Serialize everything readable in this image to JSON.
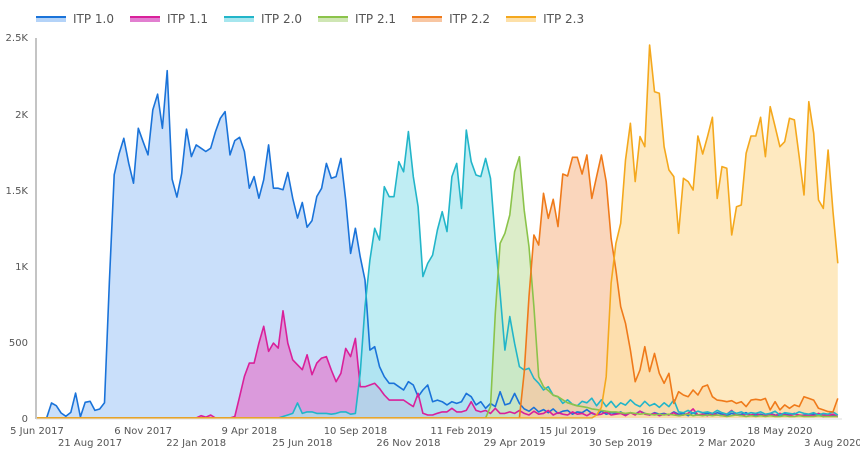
{
  "chart_data": {
    "type": "area",
    "title": "",
    "xlabel": "",
    "ylabel": "",
    "ylim": [
      0,
      2500
    ],
    "y_ticks": [
      0,
      500,
      1000,
      1500,
      2000,
      2500
    ],
    "y_tick_labels": [
      "0",
      "500",
      "1K",
      "1.5K",
      "2K",
      "2.5K"
    ],
    "grid": false,
    "legend": "top-left",
    "x_tick_labels": [
      "5 Jun 2017",
      "21 Aug 2017",
      "6 Nov 2017",
      "22 Jan 2018",
      "9 Apr 2018",
      "25 Jun 2018",
      "10 Sep 2018",
      "26 Nov 2018",
      "11 Feb 2019",
      "29 Apr 2019",
      "15 Jul 2019",
      "30 Sep 2019",
      "16 Dec 2019",
      "2 Mar 2020",
      "18 May 2020",
      "3 Aug 2020"
    ],
    "x": [
      "2017-06-05",
      "2017-06-12",
      "2017-06-19",
      "2017-06-26",
      "2017-07-03",
      "2017-07-10",
      "2017-07-17",
      "2017-07-24",
      "2017-07-31",
      "2017-08-07",
      "2017-08-14",
      "2017-08-21",
      "2017-08-28",
      "2017-09-04",
      "2017-09-11",
      "2017-09-18",
      "2017-09-25",
      "2017-10-02",
      "2017-10-09",
      "2017-10-16",
      "2017-10-23",
      "2017-10-30",
      "2017-11-06",
      "2017-11-13",
      "2017-11-20",
      "2017-11-27",
      "2017-12-04",
      "2017-12-11",
      "2017-12-18",
      "2017-12-25",
      "2018-01-01",
      "2018-01-08",
      "2018-01-15",
      "2018-01-22",
      "2018-01-29",
      "2018-02-05",
      "2018-02-12",
      "2018-02-19",
      "2018-02-26",
      "2018-03-05",
      "2018-03-12",
      "2018-03-19",
      "2018-03-26",
      "2018-04-02",
      "2018-04-09",
      "2018-04-16",
      "2018-04-23",
      "2018-04-30",
      "2018-05-07",
      "2018-05-14",
      "2018-05-21",
      "2018-05-28",
      "2018-06-04",
      "2018-06-11",
      "2018-06-18",
      "2018-06-25",
      "2018-07-02",
      "2018-07-09",
      "2018-07-16",
      "2018-07-23",
      "2018-07-30",
      "2018-08-06",
      "2018-08-13",
      "2018-08-20",
      "2018-08-27",
      "2018-09-03",
      "2018-09-10",
      "2018-09-17",
      "2018-09-24",
      "2018-10-01",
      "2018-10-08",
      "2018-10-15",
      "2018-10-22",
      "2018-10-29",
      "2018-11-05",
      "2018-11-12",
      "2018-11-19",
      "2018-11-26",
      "2018-12-03",
      "2018-12-10",
      "2018-12-17",
      "2018-12-24",
      "2018-12-31",
      "2019-01-07",
      "2019-01-14",
      "2019-01-21",
      "2019-01-28",
      "2019-02-04",
      "2019-02-11",
      "2019-02-18",
      "2019-02-25",
      "2019-03-04",
      "2019-03-11",
      "2019-03-18",
      "2019-03-25",
      "2019-04-01",
      "2019-04-08",
      "2019-04-15",
      "2019-04-22",
      "2019-04-29",
      "2019-05-06",
      "2019-05-13",
      "2019-05-20",
      "2019-05-27",
      "2019-06-03",
      "2019-06-10",
      "2019-06-17",
      "2019-06-24",
      "2019-07-01",
      "2019-07-08",
      "2019-07-15",
      "2019-07-22",
      "2019-07-29",
      "2019-08-05",
      "2019-08-12",
      "2019-08-19",
      "2019-08-26",
      "2019-09-02",
      "2019-09-09",
      "2019-09-16",
      "2019-09-23",
      "2019-09-30",
      "2019-10-07",
      "2019-10-14",
      "2019-10-21",
      "2019-10-28",
      "2019-11-04",
      "2019-11-11",
      "2019-11-18",
      "2019-11-25",
      "2019-12-02",
      "2019-12-09",
      "2019-12-16",
      "2019-12-23",
      "2019-12-30",
      "2020-01-06",
      "2020-01-13",
      "2020-01-20",
      "2020-01-27",
      "2020-02-03",
      "2020-02-10",
      "2020-02-17",
      "2020-02-24",
      "2020-03-02",
      "2020-03-09",
      "2020-03-16",
      "2020-03-23",
      "2020-03-30",
      "2020-04-06",
      "2020-04-13",
      "2020-04-20",
      "2020-04-27",
      "2020-05-04",
      "2020-05-11",
      "2020-05-18",
      "2020-05-25",
      "2020-06-01",
      "2020-06-08",
      "2020-06-15",
      "2020-06-22",
      "2020-06-29",
      "2020-07-06",
      "2020-07-13",
      "2020-07-20",
      "2020-07-27",
      "2020-08-03",
      "2020-08-10"
    ],
    "series": [
      {
        "name": "ITP 1.0",
        "color": "#1a73d9",
        "fill": "#b4d3f8",
        "values": [
          0,
          0,
          0,
          99,
          81,
          33,
          11,
          37,
          164,
          7,
          103,
          110,
          50,
          59,
          100,
          900,
          1600,
          1737,
          1840,
          1676,
          1545,
          1906,
          1818,
          1731,
          2027,
          2130,
          1906,
          2285,
          1571,
          1453,
          1610,
          1900,
          1720,
          1797,
          1775,
          1753,
          1775,
          1884,
          1972,
          2016,
          1731,
          1825,
          1847,
          1753,
          1512,
          1588,
          1446,
          1567,
          1797,
          1512,
          1512,
          1501,
          1615,
          1446,
          1315,
          1418,
          1255,
          1299,
          1457,
          1511,
          1675,
          1577,
          1588,
          1708,
          1434,
          1083,
          1248,
          1061,
          908,
          447,
          469,
          338,
          272,
          228,
          228,
          206,
          184,
          239,
          217,
          140,
          184,
          217,
          107,
          118,
          107,
          86,
          107,
          96,
          107,
          162,
          140,
          86,
          107,
          64,
          96,
          75,
          173,
          86,
          96,
          162,
          96,
          60,
          45,
          70,
          40,
          55,
          35,
          60,
          30,
          45,
          50,
          25,
          40,
          35,
          55,
          30,
          20,
          45,
          25,
          35,
          30,
          40,
          20,
          35,
          25,
          45,
          30,
          20,
          35,
          25,
          30,
          20,
          40,
          25,
          30,
          15,
          35,
          20,
          25,
          30,
          20,
          35,
          25,
          15,
          30,
          20,
          25,
          35,
          15,
          20,
          25,
          15,
          30,
          20,
          15,
          25,
          20,
          30,
          15,
          20,
          15,
          25,
          20,
          10,
          20,
          15,
          10
        ]
      },
      {
        "name": "ITP 1.1",
        "color": "#d9209a",
        "fill": "#e27fd0",
        "values": [
          0,
          0,
          0,
          0,
          0,
          0,
          0,
          0,
          0,
          0,
          0,
          0,
          0,
          0,
          0,
          0,
          0,
          0,
          0,
          0,
          0,
          0,
          0,
          0,
          0,
          0,
          0,
          0,
          0,
          0,
          0,
          0,
          0,
          0,
          15,
          5,
          20,
          0,
          0,
          0,
          0,
          10,
          140,
          274,
          361,
          361,
          493,
          603,
          438,
          493,
          460,
          705,
          493,
          383,
          350,
          318,
          416,
          285,
          361,
          394,
          404,
          316,
          239,
          294,
          458,
          404,
          524,
          206,
          206,
          217,
          228,
          195,
          151,
          118,
          118,
          118,
          118,
          96,
          75,
          162,
          31,
          20,
          20,
          31,
          40,
          40,
          64,
          40,
          40,
          50,
          107,
          50,
          40,
          50,
          30,
          64,
          30,
          30,
          40,
          30,
          50,
          30,
          20,
          45,
          25,
          30,
          50,
          20,
          35,
          25,
          20,
          40,
          25,
          30,
          15,
          35,
          20,
          25,
          40,
          20,
          25,
          30,
          15,
          35,
          20,
          45,
          25,
          20,
          30,
          15,
          25,
          20,
          35,
          15,
          20,
          30,
          60,
          20,
          25,
          15,
          30,
          20,
          15,
          25,
          50,
          20,
          15,
          25,
          20,
          30,
          15,
          20,
          25,
          15,
          30,
          20,
          15,
          25,
          20,
          15,
          20,
          15,
          30,
          20,
          15,
          25,
          10
        ]
      },
      {
        "name": "ITP 2.0",
        "color": "#22b5c9",
        "fill": "#a6e6ee",
        "values": [
          0,
          0,
          0,
          0,
          0,
          0,
          0,
          0,
          0,
          0,
          0,
          0,
          0,
          0,
          0,
          0,
          0,
          0,
          0,
          0,
          0,
          0,
          0,
          0,
          0,
          0,
          0,
          0,
          0,
          0,
          0,
          0,
          0,
          0,
          0,
          0,
          0,
          0,
          0,
          0,
          0,
          0,
          0,
          0,
          0,
          0,
          0,
          0,
          0,
          0,
          0,
          10,
          20,
          30,
          99,
          30,
          40,
          40,
          30,
          30,
          30,
          25,
          30,
          40,
          40,
          25,
          30,
          294,
          732,
          1039,
          1248,
          1171,
          1522,
          1456,
          1456,
          1686,
          1620,
          1884,
          1588,
          1390,
          930,
          1017,
          1072,
          1237,
          1357,
          1226,
          1588,
          1675,
          1379,
          1895,
          1686,
          1599,
          1588,
          1708,
          1577,
          1171,
          820,
          447,
          667,
          491,
          338,
          316,
          327,
          261,
          228,
          184,
          206,
          150,
          140,
          96,
          120,
          90,
          80,
          110,
          100,
          130,
          80,
          120,
          75,
          110,
          70,
          100,
          85,
          120,
          90,
          75,
          110,
          80,
          95,
          70,
          100,
          75,
          120,
          40,
          35,
          50,
          30,
          45,
          35,
          40,
          30,
          50,
          35,
          25,
          45,
          30,
          40,
          25,
          35,
          30,
          40,
          25,
          30,
          45,
          20,
          35,
          30,
          25,
          40,
          30,
          25,
          35,
          20,
          30,
          25,
          40,
          20
        ]
      },
      {
        "name": "ITP 2.1",
        "color": "#8bc34a",
        "fill": "#cfe6b4",
        "values": [
          0,
          0,
          0,
          0,
          0,
          0,
          0,
          0,
          0,
          0,
          0,
          0,
          0,
          0,
          0,
          0,
          0,
          0,
          0,
          0,
          0,
          0,
          0,
          0,
          0,
          0,
          0,
          0,
          0,
          0,
          0,
          0,
          0,
          0,
          0,
          0,
          0,
          0,
          0,
          0,
          0,
          0,
          0,
          0,
          0,
          0,
          0,
          0,
          0,
          0,
          0,
          0,
          0,
          0,
          0,
          0,
          0,
          0,
          0,
          0,
          0,
          0,
          0,
          0,
          0,
          0,
          0,
          0,
          0,
          0,
          0,
          0,
          0,
          0,
          0,
          0,
          0,
          0,
          0,
          0,
          0,
          0,
          0,
          0,
          0,
          0,
          0,
          0,
          0,
          0,
          0,
          0,
          0,
          0,
          75,
          689,
          1149,
          1215,
          1336,
          1620,
          1719,
          1368,
          1127,
          732,
          272,
          206,
          180,
          150,
          140,
          120,
          100,
          90,
          80,
          75,
          70,
          60,
          55,
          50,
          45,
          40,
          40,
          35,
          30,
          35,
          30,
          25,
          30,
          25,
          20,
          25,
          20,
          25,
          20,
          15,
          20,
          25,
          15,
          20,
          15,
          20,
          15,
          20,
          15,
          10,
          15,
          20,
          15,
          10,
          15,
          10,
          15,
          10,
          15,
          10,
          10,
          15,
          10,
          10,
          15,
          10,
          10,
          10,
          15,
          10,
          10,
          10,
          10
        ]
      },
      {
        "name": "ITP 2.2",
        "color": "#ef7a1a",
        "fill": "#f8c6a2",
        "values": [
          0,
          0,
          0,
          0,
          0,
          0,
          0,
          0,
          0,
          0,
          0,
          0,
          0,
          0,
          0,
          0,
          0,
          0,
          0,
          0,
          0,
          0,
          0,
          0,
          0,
          0,
          0,
          0,
          0,
          0,
          0,
          0,
          0,
          0,
          0,
          0,
          0,
          0,
          0,
          0,
          0,
          0,
          0,
          0,
          0,
          0,
          0,
          0,
          0,
          0,
          0,
          0,
          0,
          0,
          0,
          0,
          0,
          0,
          0,
          0,
          0,
          0,
          0,
          0,
          0,
          0,
          0,
          0,
          0,
          0,
          0,
          0,
          0,
          0,
          0,
          0,
          0,
          0,
          0,
          0,
          0,
          0,
          0,
          0,
          0,
          0,
          0,
          0,
          0,
          0,
          0,
          0,
          0,
          0,
          0,
          0,
          0,
          0,
          0,
          0,
          0,
          300,
          800,
          1204,
          1138,
          1478,
          1313,
          1439,
          1259,
          1605,
          1592,
          1715,
          1715,
          1605,
          1730,
          1445,
          1588,
          1730,
          1555,
          1182,
          974,
          732,
          623,
          447,
          239,
          316,
          469,
          305,
          425,
          294,
          228,
          294,
          96,
          173,
          151,
          140,
          184,
          151,
          206,
          217,
          140,
          118,
          114,
          107,
          114,
          96,
          107,
          75,
          118,
          123,
          118,
          129,
          53,
          107,
          53,
          86,
          64,
          86,
          75,
          140,
          129,
          118,
          64,
          53,
          42,
          40,
          129
        ]
      },
      {
        "name": "ITP 2.3",
        "color": "#f4a81d",
        "fill": "#fde0a8",
        "values": [
          0,
          0,
          0,
          0,
          0,
          0,
          0,
          0,
          0,
          0,
          0,
          0,
          0,
          0,
          0,
          0,
          0,
          0,
          0,
          0,
          0,
          0,
          0,
          0,
          0,
          0,
          0,
          0,
          0,
          0,
          0,
          0,
          0,
          0,
          0,
          0,
          0,
          0,
          0,
          0,
          0,
          0,
          0,
          0,
          0,
          0,
          0,
          0,
          0,
          0,
          0,
          0,
          0,
          0,
          0,
          0,
          0,
          0,
          0,
          0,
          0,
          0,
          0,
          0,
          0,
          0,
          0,
          0,
          0,
          0,
          0,
          0,
          0,
          0,
          0,
          0,
          0,
          0,
          0,
          0,
          0,
          0,
          0,
          0,
          0,
          0,
          0,
          0,
          0,
          0,
          0,
          0,
          0,
          0,
          0,
          0,
          0,
          0,
          0,
          0,
          0,
          0,
          0,
          0,
          0,
          0,
          0,
          0,
          0,
          0,
          0,
          0,
          0,
          0,
          0,
          0,
          20,
          70,
          272,
          886,
          1149,
          1281,
          1697,
          1939,
          1555,
          1851,
          1785,
          2454,
          2147,
          2136,
          1785,
          1632,
          1588,
          1215,
          1577,
          1555,
          1500,
          1855,
          1737,
          1851,
          1978,
          1445,
          1654,
          1643,
          1204,
          1390,
          1401,
          1741,
          1855,
          1855,
          1978,
          1719,
          2048,
          1917,
          1785,
          1818,
          1972,
          1961,
          1719,
          1467,
          2081,
          1873,
          1434,
          1379,
          1763,
          1357,
          1018
        ]
      }
    ]
  }
}
